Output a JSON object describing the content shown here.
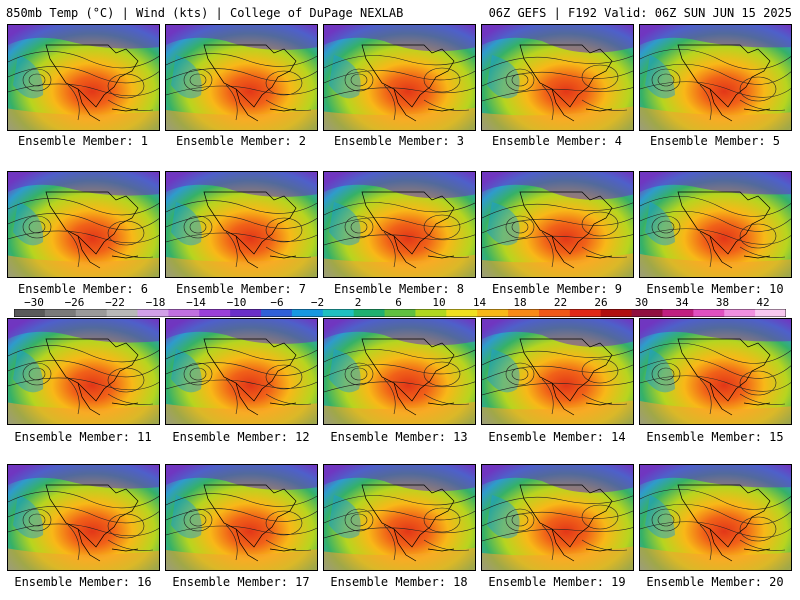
{
  "header": {
    "left_title": "850mb Temp (°C) | Wind (kts) | College of DuPage NEXLAB",
    "right_title": "06Z GEFS | F192 Valid: 06Z SUN JUN 15 2025"
  },
  "panels": [
    {
      "label": "Ensemble Member: 1"
    },
    {
      "label": "Ensemble Member: 2"
    },
    {
      "label": "Ensemble Member: 3"
    },
    {
      "label": "Ensemble Member: 4"
    },
    {
      "label": "Ensemble Member: 5"
    },
    {
      "label": "Ensemble Member: 6"
    },
    {
      "label": "Ensemble Member: 7"
    },
    {
      "label": "Ensemble Member: 8"
    },
    {
      "label": "Ensemble Member: 9"
    },
    {
      "label": "Ensemble Member: 10"
    },
    {
      "label": "Ensemble Member: 11"
    },
    {
      "label": "Ensemble Member: 12"
    },
    {
      "label": "Ensemble Member: 13"
    },
    {
      "label": "Ensemble Member: 14"
    },
    {
      "label": "Ensemble Member: 15"
    },
    {
      "label": "Ensemble Member: 16"
    },
    {
      "label": "Ensemble Member: 17"
    },
    {
      "label": "Ensemble Member: 18"
    },
    {
      "label": "Ensemble Member: 19"
    },
    {
      "label": "Ensemble Member: 20"
    }
  ],
  "colorbar": {
    "labels": [
      "−30",
      "−26",
      "−22",
      "−18",
      "−14",
      "−10",
      "−6",
      "−2",
      "2",
      "6",
      "10",
      "14",
      "18",
      "22",
      "26",
      "30",
      "34",
      "38",
      "42"
    ],
    "colors": [
      "#5a5a5a",
      "#7a7a7a",
      "#9a9a9a",
      "#b8b8b8",
      "#d2a0e8",
      "#c070e0",
      "#9a40d8",
      "#6a30c8",
      "#3060d8",
      "#1898e0",
      "#20c0c0",
      "#20b070",
      "#60c040",
      "#b0d820",
      "#f0e020",
      "#f8b818",
      "#f88a18",
      "#f05818",
      "#e02818",
      "#b01010",
      "#901040",
      "#c02080",
      "#e050c0",
      "#f090e0",
      "#f8c8f0"
    ]
  },
  "colors": {
    "cold": "#6a30c8",
    "cool": "#1898e0",
    "mild": "#20b070",
    "warm": "#f8b818",
    "hot": "#e02818"
  }
}
